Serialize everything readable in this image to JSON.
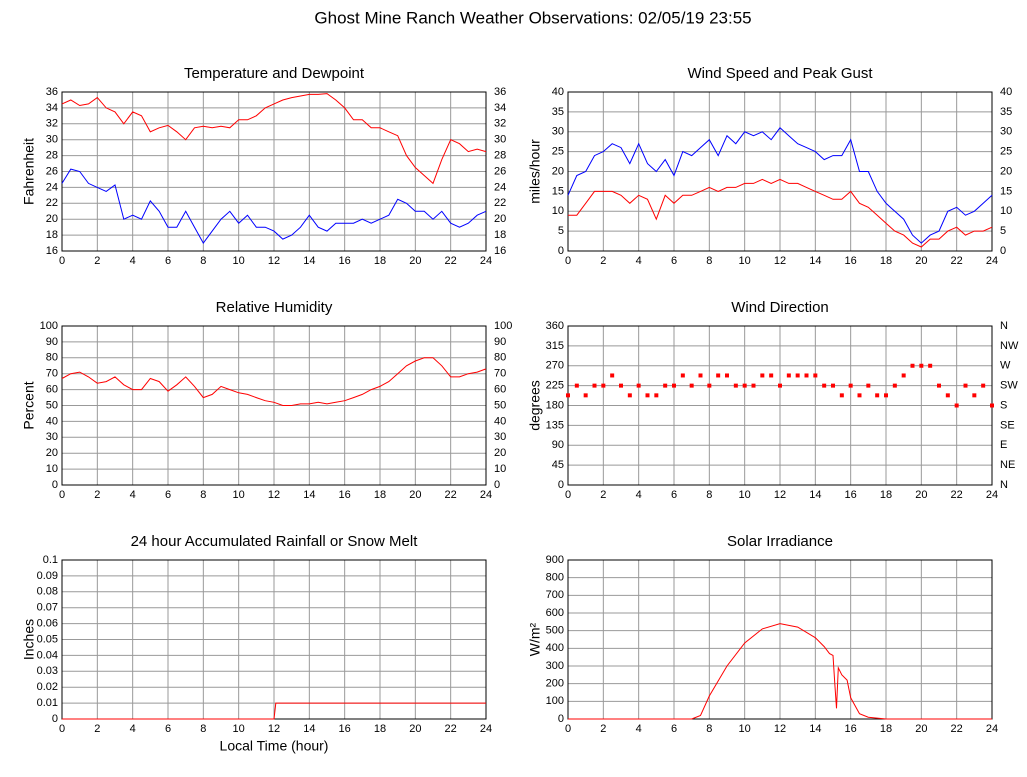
{
  "title": "Ghost Mine Ranch Weather Observations: 02/05/19 23:55",
  "chart_data": [
    {
      "type": "line",
      "title": "Temperature and Dewpoint",
      "ylabel": "Fahrenheit",
      "grid": true,
      "x": [
        0,
        0.5,
        1,
        1.5,
        2,
        2.5,
        3,
        3.5,
        4,
        4.5,
        5,
        5.5,
        6,
        6.5,
        7,
        7.5,
        8,
        8.5,
        9,
        9.5,
        10,
        10.5,
        11,
        11.5,
        12,
        12.5,
        13,
        13.5,
        14,
        14.5,
        15,
        15.5,
        16,
        16.5,
        17,
        17.5,
        18,
        18.5,
        19,
        19.5,
        20,
        20.5,
        21,
        21.5,
        22,
        22.5,
        23,
        23.5,
        24
      ],
      "xlim": [
        0,
        24
      ],
      "xticks": [
        0,
        2,
        4,
        6,
        8,
        10,
        12,
        14,
        16,
        18,
        20,
        22,
        24
      ],
      "ylim": [
        16,
        36
      ],
      "yticks": [
        16,
        18,
        20,
        22,
        24,
        26,
        28,
        30,
        32,
        34,
        36
      ],
      "y2lim": [
        16,
        36
      ],
      "y2ticks": [
        16,
        18,
        20,
        22,
        24,
        26,
        28,
        30,
        32,
        34,
        36
      ],
      "series": [
        {
          "color": "#ff0000",
          "values": [
            34.5,
            35,
            34.3,
            34.5,
            35.3,
            34,
            33.5,
            32,
            33.5,
            33,
            31,
            31.5,
            31.8,
            31,
            30,
            31.5,
            31.7,
            31.5,
            31.7,
            31.5,
            32.5,
            32.5,
            33,
            34,
            34.5,
            35,
            35.3,
            35.5,
            35.7,
            35.7,
            35.8,
            35,
            34,
            32.5,
            32.5,
            31.5,
            31.5,
            31,
            30.5,
            28,
            26.5,
            25.5,
            24.5,
            27.5,
            30,
            29.5,
            28.5,
            28.8,
            28.5
          ]
        },
        {
          "color": "#0000ff",
          "values": [
            24.5,
            26.3,
            26,
            24.5,
            24,
            23.5,
            24.3,
            20,
            20.5,
            20,
            22.3,
            21,
            19,
            19,
            21,
            19,
            17,
            18.5,
            20,
            21,
            19.5,
            20.5,
            19,
            19,
            18.5,
            17.5,
            18,
            19,
            20.5,
            19,
            18.5,
            19.5,
            19.5,
            19.5,
            20,
            19.5,
            20,
            20.5,
            22.5,
            22,
            21,
            21,
            20,
            21,
            19.5,
            19,
            19.5,
            20.5,
            21
          ]
        }
      ]
    },
    {
      "type": "line",
      "title": "Wind Speed and Peak Gust",
      "ylabel": "miles/hour",
      "grid": true,
      "x": [
        0,
        0.5,
        1,
        1.5,
        2,
        2.5,
        3,
        3.5,
        4,
        4.5,
        5,
        5.5,
        6,
        6.5,
        7,
        7.5,
        8,
        8.5,
        9,
        9.5,
        10,
        10.5,
        11,
        11.5,
        12,
        12.5,
        13,
        13.5,
        14,
        14.5,
        15,
        15.5,
        16,
        16.5,
        17,
        17.5,
        18,
        18.5,
        19,
        19.5,
        20,
        20.5,
        21,
        21.5,
        22,
        22.5,
        23,
        23.5,
        24
      ],
      "xlim": [
        0,
        24
      ],
      "xticks": [
        0,
        2,
        4,
        6,
        8,
        10,
        12,
        14,
        16,
        18,
        20,
        22,
        24
      ],
      "ylim": [
        0,
        40
      ],
      "yticks": [
        0,
        5,
        10,
        15,
        20,
        25,
        30,
        35,
        40
      ],
      "y2lim": [
        0,
        40
      ],
      "y2ticks": [
        0,
        5,
        10,
        15,
        20,
        25,
        30,
        35,
        40
      ],
      "series": [
        {
          "color": "#0000ff",
          "values": [
            14,
            19,
            20,
            24,
            25,
            27,
            26,
            22,
            27,
            22,
            20,
            23,
            19,
            25,
            24,
            26,
            28,
            24,
            29,
            27,
            30,
            29,
            30,
            28,
            31,
            29,
            27,
            26,
            25,
            23,
            24,
            24,
            28,
            20,
            20,
            15,
            12,
            10,
            8,
            4,
            2,
            4,
            5,
            10,
            11,
            9,
            10,
            12,
            14
          ]
        },
        {
          "color": "#ff0000",
          "values": [
            9,
            9,
            12,
            15,
            15,
            15,
            14,
            12,
            14,
            13,
            8,
            14,
            12,
            14,
            14,
            15,
            16,
            15,
            16,
            16,
            17,
            17,
            18,
            17,
            18,
            17,
            17,
            16,
            15,
            14,
            13,
            13,
            15,
            12,
            11,
            9,
            7,
            5,
            4,
            2,
            1,
            3,
            3,
            5,
            6,
            4,
            5,
            5,
            6
          ]
        }
      ]
    },
    {
      "type": "line",
      "title": "Relative Humidity",
      "ylabel": "Percent",
      "grid": true,
      "x": [
        0,
        0.5,
        1,
        1.5,
        2,
        2.5,
        3,
        3.5,
        4,
        4.5,
        5,
        5.5,
        6,
        6.5,
        7,
        7.5,
        8,
        8.5,
        9,
        9.5,
        10,
        10.5,
        11,
        11.5,
        12,
        12.5,
        13,
        13.5,
        14,
        14.5,
        15,
        15.5,
        16,
        16.5,
        17,
        17.5,
        18,
        18.5,
        19,
        19.5,
        20,
        20.5,
        21,
        21.5,
        22,
        22.5,
        23,
        23.5,
        24
      ],
      "xlim": [
        0,
        24
      ],
      "xticks": [
        0,
        2,
        4,
        6,
        8,
        10,
        12,
        14,
        16,
        18,
        20,
        22,
        24
      ],
      "ylim": [
        0,
        100
      ],
      "yticks": [
        0,
        10,
        20,
        30,
        40,
        50,
        60,
        70,
        80,
        90,
        100
      ],
      "y2lim": [
        0,
        100
      ],
      "y2ticks": [
        0,
        10,
        20,
        30,
        40,
        50,
        60,
        70,
        80,
        90,
        100
      ],
      "series": [
        {
          "color": "#ff0000",
          "values": [
            67,
            70,
            71,
            68,
            64,
            65,
            68,
            63,
            60,
            60,
            67,
            65,
            59,
            63,
            68,
            62,
            55,
            57,
            62,
            60,
            58,
            57,
            55,
            53,
            52,
            50,
            50,
            51,
            51,
            52,
            51,
            52,
            53,
            55,
            57,
            60,
            62,
            65,
            70,
            75,
            78,
            80,
            80,
            75,
            68,
            68,
            70,
            71,
            73
          ]
        }
      ]
    },
    {
      "type": "scatter",
      "title": "Wind Direction",
      "ylabel": "degrees",
      "grid": true,
      "x": [
        0,
        0.5,
        1,
        1.5,
        2,
        2.5,
        3,
        3.5,
        4,
        4.5,
        5,
        5.5,
        6,
        6.5,
        7,
        7.5,
        8,
        8.5,
        9,
        9.5,
        10,
        10.5,
        11,
        11.5,
        12,
        12.5,
        13,
        13.5,
        14,
        14.5,
        15,
        15.5,
        16,
        16.5,
        17,
        17.5,
        18,
        18.5,
        19,
        19.5,
        20,
        20.5,
        21,
        21.5,
        22,
        22.5,
        23,
        23.5,
        24
      ],
      "xlim": [
        0,
        24
      ],
      "xticks": [
        0,
        2,
        4,
        6,
        8,
        10,
        12,
        14,
        16,
        18,
        20,
        22,
        24
      ],
      "ylim": [
        0,
        360
      ],
      "yticks": [
        0,
        45,
        90,
        135,
        180,
        225,
        270,
        315,
        360
      ],
      "y2lim": [
        0,
        360
      ],
      "y2ticks": [
        {
          "value": 0,
          "label": "N"
        },
        {
          "value": 45,
          "label": "NE"
        },
        {
          "value": 90,
          "label": "E"
        },
        {
          "value": 135,
          "label": "SE"
        },
        {
          "value": 180,
          "label": "S"
        },
        {
          "value": 225,
          "label": "SW"
        },
        {
          "value": 270,
          "label": "W"
        },
        {
          "value": 315,
          "label": "NW"
        },
        {
          "value": 360,
          "label": "N"
        }
      ],
      "series": [
        {
          "color": "#ff0000",
          "values": [
            203,
            225,
            203,
            225,
            225,
            248,
            225,
            203,
            225,
            203,
            203,
            225,
            225,
            248,
            225,
            248,
            225,
            248,
            248,
            225,
            225,
            225,
            248,
            248,
            225,
            248,
            248,
            248,
            248,
            225,
            225,
            203,
            225,
            203,
            225,
            203,
            203,
            225,
            248,
            270,
            270,
            270,
            225,
            203,
            180,
            225,
            203,
            225,
            180
          ]
        }
      ]
    },
    {
      "type": "line",
      "title": "24 hour Accumulated Rainfall or Snow Melt",
      "ylabel": "Inches",
      "xlabel": "Local Time (hour)",
      "grid": true,
      "x": [
        0,
        12,
        12.1,
        24
      ],
      "xlim": [
        0,
        24
      ],
      "xticks": [
        0,
        2,
        4,
        6,
        8,
        10,
        12,
        14,
        16,
        18,
        20,
        22,
        24
      ],
      "ylim": [
        0,
        0.1
      ],
      "yticks": [
        0,
        0.01,
        0.02,
        0.03,
        0.04,
        0.05,
        0.06,
        0.07,
        0.08,
        0.09,
        0.1
      ],
      "series": [
        {
          "color": "#ff0000",
          "values": [
            0,
            0,
            0.01,
            0.01
          ]
        }
      ]
    },
    {
      "type": "line",
      "title": "Solar Irradiance",
      "ylabel": "W/m²",
      "grid": true,
      "x": [
        0,
        7,
        7.5,
        8,
        9,
        10,
        11,
        12,
        13,
        14,
        14.5,
        14.8,
        15,
        15.1,
        15.2,
        15.3,
        15.5,
        15.8,
        16,
        16.5,
        17,
        18,
        24
      ],
      "xlim": [
        0,
        24
      ],
      "xticks": [
        0,
        2,
        4,
        6,
        8,
        10,
        12,
        14,
        16,
        18,
        20,
        22,
        24
      ],
      "ylim": [
        0,
        900
      ],
      "yticks": [
        0,
        100,
        200,
        300,
        400,
        500,
        600,
        700,
        800,
        900
      ],
      "series": [
        {
          "color": "#ff0000",
          "values": [
            0,
            0,
            20,
            130,
            300,
            430,
            510,
            540,
            520,
            460,
            410,
            370,
            360,
            200,
            60,
            290,
            250,
            220,
            120,
            30,
            10,
            0,
            0
          ]
        }
      ]
    }
  ]
}
